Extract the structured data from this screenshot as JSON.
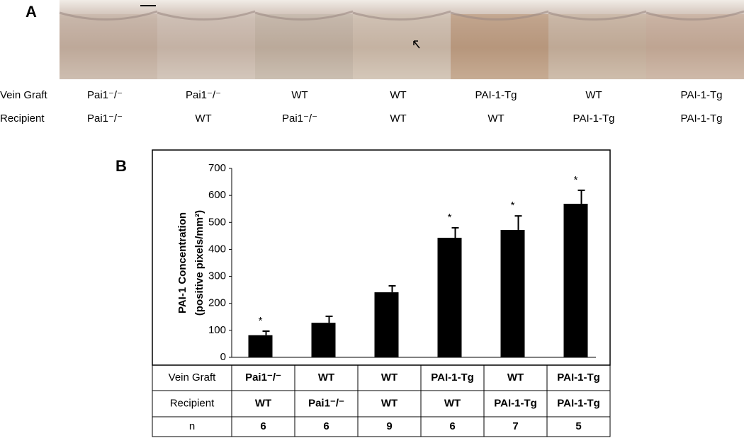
{
  "panel_a": {
    "label": "A",
    "rows": [
      {
        "label": "Vein Graft",
        "cells": [
          "Pai1⁻/⁻",
          "Pai1⁻/⁻",
          "WT",
          "WT",
          "PAI-1-Tg",
          "WT",
          "PAI-1-Tg"
        ]
      },
      {
        "label": "Recipient",
        "cells": [
          "Pai1⁻/⁻",
          "WT",
          "Pai1⁻/⁻",
          "WT",
          "WT",
          "PAI-1-Tg",
          "PAI-1-Tg"
        ]
      }
    ]
  },
  "chart_data": {
    "type": "bar",
    "label": "B",
    "y_label": [
      "PAI-1 Concentration",
      "(positive pixels/mm²)"
    ],
    "values": [
      82,
      128,
      241,
      443,
      472,
      569
    ],
    "errors": [
      15,
      24,
      24,
      37,
      52,
      50
    ],
    "significance": [
      "*",
      null,
      null,
      "*",
      "*",
      "*"
    ],
    "color": "#000000",
    "ylim": [
      0,
      700
    ],
    "yticks": [
      0,
      100,
      200,
      300,
      400,
      500,
      600,
      700
    ],
    "grid": false,
    "table": {
      "rows": [
        {
          "label": "Vein Graft",
          "cells": [
            "Pai1⁻/⁻",
            "WT",
            "WT",
            "PAI-1-Tg",
            "WT",
            "PAI-1-Tg"
          ]
        },
        {
          "label": "Recipient",
          "cells": [
            "WT",
            "Pai1⁻/⁻",
            "WT",
            "WT",
            "PAI-1-Tg",
            "PAI-1-Tg"
          ]
        },
        {
          "label": "n",
          "cells": [
            "6",
            "6",
            "9",
            "6",
            "7",
            "5"
          ]
        }
      ]
    }
  }
}
